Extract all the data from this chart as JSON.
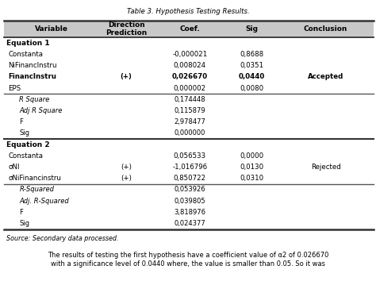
{
  "title": "Table 3. Hypothesis Testing Results.",
  "header": [
    "Variable",
    "Direction\nPrediction",
    "Coef.",
    "Sig",
    "Conclusion"
  ],
  "rows": [
    {
      "label": "Equation 1",
      "dir": "",
      "coef": "",
      "sig": "",
      "conc": "",
      "bold": true,
      "type": "section"
    },
    {
      "label": "Constanta",
      "dir": "",
      "coef": "-0,000021",
      "sig": "0,8688",
      "conc": "",
      "bold": false,
      "type": "data"
    },
    {
      "label": "NiFinancInstru",
      "dir": "",
      "coef": "0,008024",
      "sig": "0,0351",
      "conc": "",
      "bold": false,
      "type": "data"
    },
    {
      "label": "FinancInstru",
      "dir": "(+)",
      "coef": "0,026670",
      "sig": "0,0440",
      "conc": "Accepted",
      "bold": true,
      "type": "data"
    },
    {
      "label": "EPS",
      "dir": "",
      "coef": "0,000002",
      "sig": "0,0080",
      "conc": "",
      "bold": false,
      "type": "data"
    },
    {
      "label": "R Square",
      "dir": "",
      "coef": "0,174448",
      "sig": "",
      "conc": "",
      "bold": false,
      "type": "stat",
      "italic": true
    },
    {
      "label": "Adj R Square",
      "dir": "",
      "coef": "0,115879",
      "sig": "",
      "conc": "",
      "bold": false,
      "type": "stat",
      "italic": true
    },
    {
      "label": "F",
      "dir": "",
      "coef": "2,978477",
      "sig": "",
      "conc": "",
      "bold": false,
      "type": "stat",
      "italic": false
    },
    {
      "label": "Sig",
      "dir": "",
      "coef": "0,000000",
      "sig": "",
      "conc": "",
      "bold": false,
      "type": "stat",
      "italic": false
    },
    {
      "label": "Equation 2",
      "dir": "",
      "coef": "",
      "sig": "",
      "conc": "",
      "bold": true,
      "type": "section"
    },
    {
      "label": "Constanta",
      "dir": "",
      "coef": "0,056533",
      "sig": "0,0000",
      "conc": "",
      "bold": false,
      "type": "data"
    },
    {
      "label": "σNI",
      "dir": "(+)",
      "coef": "-1,016796",
      "sig": "0,0130",
      "conc": "Rejected",
      "bold": false,
      "type": "data"
    },
    {
      "label": "σNiFinancinstru",
      "dir": "(+)",
      "coef": "0,850722",
      "sig": "0,0310",
      "conc": "",
      "bold": false,
      "type": "data"
    },
    {
      "label": "R-Squared",
      "dir": "",
      "coef": "0,053926",
      "sig": "",
      "conc": "",
      "bold": false,
      "type": "stat",
      "italic": true
    },
    {
      "label": "Adj. R-Squared",
      "dir": "",
      "coef": "0,039805",
      "sig": "",
      "conc": "",
      "bold": false,
      "type": "stat",
      "italic": true
    },
    {
      "label": "F",
      "dir": "",
      "coef": "3,818976",
      "sig": "",
      "conc": "",
      "bold": false,
      "type": "stat",
      "italic": false
    },
    {
      "label": "Sig",
      "dir": "",
      "coef": "0,024377",
      "sig": "",
      "conc": "",
      "bold": false,
      "type": "stat",
      "italic": false
    }
  ],
  "footer": "Source: Secondary data processed.",
  "bottom_text": "The results of testing the first hypothesis have a coefficient value of α2 of 0.026670\nwith a significance level of 0.0440 where, the value is smaller than 0.05. So it was",
  "bg_color": "#ffffff",
  "header_bg": "#c8c8c8",
  "sep_line_color": "#555555",
  "thick_line_color": "#333333"
}
